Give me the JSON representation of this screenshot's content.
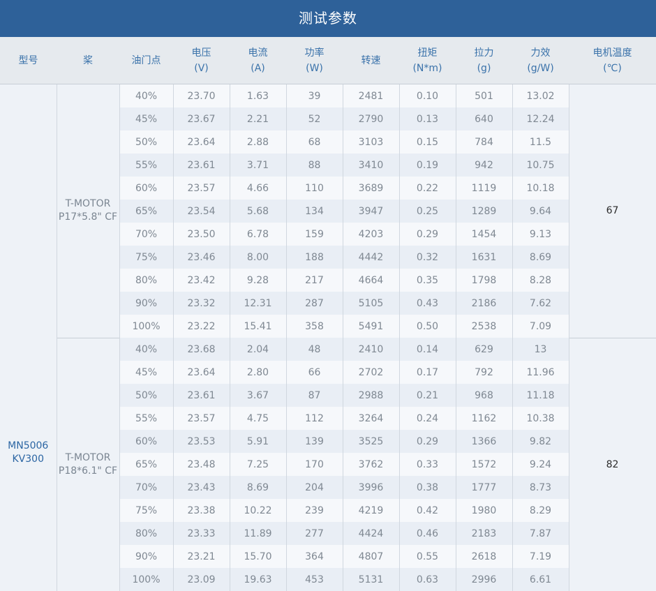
{
  "title": "测试参数",
  "headers": [
    {
      "l1": "型号",
      "l2": ""
    },
    {
      "l1": "桨",
      "l2": ""
    },
    {
      "l1": "油门点",
      "l2": ""
    },
    {
      "l1": "电压",
      "l2": "(V)"
    },
    {
      "l1": "电流",
      "l2": "(A)"
    },
    {
      "l1": "功率",
      "l2": "(W)"
    },
    {
      "l1": "转速",
      "l2": ""
    },
    {
      "l1": "扭矩",
      "l2": "(N*m)"
    },
    {
      "l1": "拉力",
      "l2": "(g)"
    },
    {
      "l1": "力效",
      "l2": "(g/W)"
    },
    {
      "l1": "电机温度",
      "l2": "(℃)"
    }
  ],
  "model": {
    "line1": "MN5006",
    "line2": "KV300"
  },
  "groups": [
    {
      "prop_line1": "T-MOTOR",
      "prop_line2": "P17*5.8\" CF",
      "temp": "67",
      "rows": [
        [
          "40%",
          "23.70",
          "1.63",
          "39",
          "2481",
          "0.10",
          "501",
          "13.02"
        ],
        [
          "45%",
          "23.67",
          "2.21",
          "52",
          "2790",
          "0.13",
          "640",
          "12.24"
        ],
        [
          "50%",
          "23.64",
          "2.88",
          "68",
          "3103",
          "0.15",
          "784",
          "11.5"
        ],
        [
          "55%",
          "23.61",
          "3.71",
          "88",
          "3410",
          "0.19",
          "942",
          "10.75"
        ],
        [
          "60%",
          "23.57",
          "4.66",
          "110",
          "3689",
          "0.22",
          "1119",
          "10.18"
        ],
        [
          "65%",
          "23.54",
          "5.68",
          "134",
          "3947",
          "0.25",
          "1289",
          "9.64"
        ],
        [
          "70%",
          "23.50",
          "6.78",
          "159",
          "4203",
          "0.29",
          "1454",
          "9.13"
        ],
        [
          "75%",
          "23.46",
          "8.00",
          "188",
          "4442",
          "0.32",
          "1631",
          "8.69"
        ],
        [
          "80%",
          "23.42",
          "9.28",
          "217",
          "4664",
          "0.35",
          "1798",
          "8.28"
        ],
        [
          "90%",
          "23.32",
          "12.31",
          "287",
          "5105",
          "0.43",
          "2186",
          "7.62"
        ],
        [
          "100%",
          "23.22",
          "15.41",
          "358",
          "5491",
          "0.50",
          "2538",
          "7.09"
        ]
      ]
    },
    {
      "prop_line1": "T-MOTOR",
      "prop_line2": "P18*6.1\" CF",
      "temp": "82",
      "rows": [
        [
          "40%",
          "23.68",
          "2.04",
          "48",
          "2410",
          "0.14",
          "629",
          "13"
        ],
        [
          "45%",
          "23.64",
          "2.80",
          "66",
          "2702",
          "0.17",
          "792",
          "11.96"
        ],
        [
          "50%",
          "23.61",
          "3.67",
          "87",
          "2988",
          "0.21",
          "968",
          "11.18"
        ],
        [
          "55%",
          "23.57",
          "4.75",
          "112",
          "3264",
          "0.24",
          "1162",
          "10.38"
        ],
        [
          "60%",
          "23.53",
          "5.91",
          "139",
          "3525",
          "0.29",
          "1366",
          "9.82"
        ],
        [
          "65%",
          "23.48",
          "7.25",
          "170",
          "3762",
          "0.33",
          "1572",
          "9.24"
        ],
        [
          "70%",
          "23.43",
          "8.69",
          "204",
          "3996",
          "0.38",
          "1777",
          "8.73"
        ],
        [
          "75%",
          "23.38",
          "10.22",
          "239",
          "4219",
          "0.42",
          "1980",
          "8.29"
        ],
        [
          "80%",
          "23.33",
          "11.89",
          "277",
          "4424",
          "0.46",
          "2183",
          "7.87"
        ],
        [
          "90%",
          "23.21",
          "15.70",
          "364",
          "4807",
          "0.55",
          "2618",
          "7.19"
        ],
        [
          "100%",
          "23.09",
          "19.63",
          "453",
          "5131",
          "0.63",
          "2996",
          "6.61"
        ]
      ]
    }
  ]
}
